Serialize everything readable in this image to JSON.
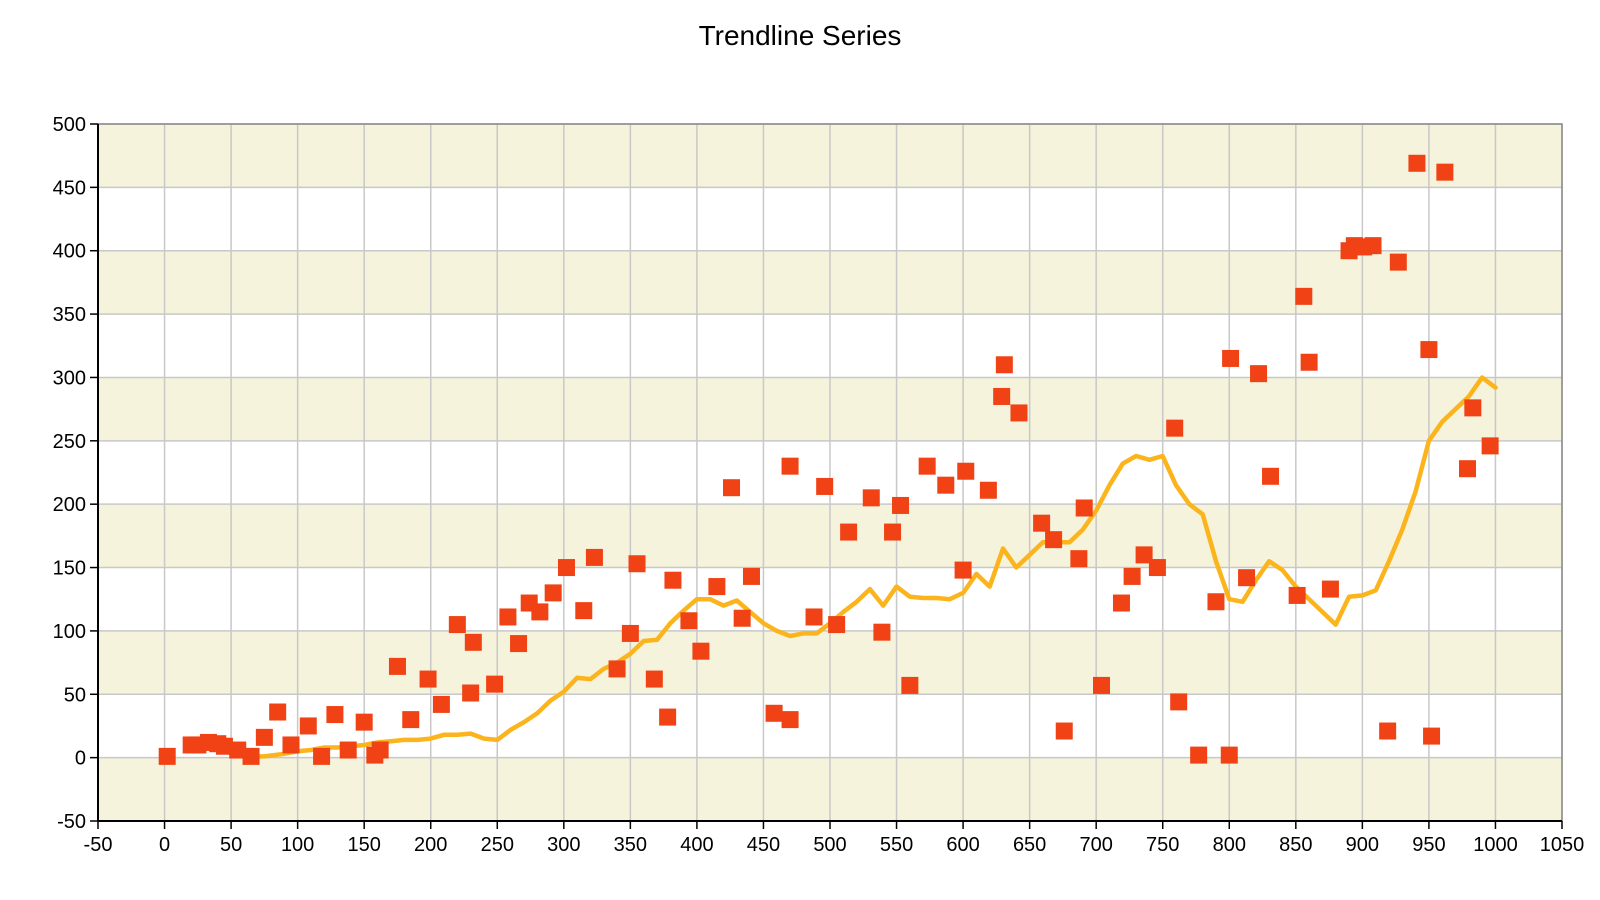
{
  "chart_data": {
    "type": "scatter",
    "title": "Trendline Series",
    "xlabel": "",
    "ylabel": "",
    "xlim": [
      -50,
      1050
    ],
    "ylim": [
      -50,
      500
    ],
    "x_ticks": [
      -50,
      0,
      50,
      100,
      150,
      200,
      250,
      300,
      350,
      400,
      450,
      500,
      550,
      600,
      650,
      700,
      750,
      800,
      850,
      900,
      950,
      1000,
      1050
    ],
    "y_ticks": [
      -50,
      0,
      50,
      100,
      150,
      200,
      250,
      300,
      350,
      400,
      450,
      500
    ],
    "grid": true,
    "band_colors": [
      "#f5f3dc",
      "#ffffff"
    ],
    "colors": {
      "scatter": "#f04214",
      "trend": "#fbb41c",
      "grid": "#c8c8c8",
      "axis": "#000000"
    },
    "series": [
      {
        "kind": "scatter",
        "marker": "square",
        "points": [
          [
            2,
            1
          ],
          [
            20,
            10
          ],
          [
            25,
            10
          ],
          [
            33,
            12
          ],
          [
            40,
            11
          ],
          [
            45,
            9
          ],
          [
            55,
            6
          ],
          [
            65,
            1
          ],
          [
            75,
            16
          ],
          [
            85,
            36
          ],
          [
            95,
            10
          ],
          [
            108,
            25
          ],
          [
            118,
            1
          ],
          [
            128,
            34
          ],
          [
            138,
            6
          ],
          [
            150,
            28
          ],
          [
            158,
            2
          ],
          [
            162,
            6
          ],
          [
            175,
            72
          ],
          [
            185,
            30
          ],
          [
            198,
            62
          ],
          [
            208,
            42
          ],
          [
            220,
            105
          ],
          [
            230,
            51
          ],
          [
            232,
            91
          ],
          [
            248,
            58
          ],
          [
            258,
            111
          ],
          [
            266,
            90
          ],
          [
            274,
            122
          ],
          [
            282,
            115
          ],
          [
            292,
            130
          ],
          [
            302,
            150
          ],
          [
            315,
            116
          ],
          [
            323,
            158
          ],
          [
            340,
            70
          ],
          [
            350,
            98
          ],
          [
            355,
            153
          ],
          [
            368,
            62
          ],
          [
            378,
            32
          ],
          [
            382,
            140
          ],
          [
            394,
            108
          ],
          [
            403,
            84
          ],
          [
            415,
            135
          ],
          [
            426,
            213
          ],
          [
            434,
            110
          ],
          [
            441,
            143
          ],
          [
            458,
            35
          ],
          [
            470,
            30
          ],
          [
            470,
            230
          ],
          [
            488,
            111
          ],
          [
            496,
            214
          ],
          [
            505,
            105
          ],
          [
            514,
            178
          ],
          [
            531,
            205
          ],
          [
            539,
            99
          ],
          [
            547,
            178
          ],
          [
            553,
            199
          ],
          [
            560,
            57
          ],
          [
            573,
            230
          ],
          [
            587,
            215
          ],
          [
            600,
            148
          ],
          [
            602,
            226
          ],
          [
            619,
            211
          ],
          [
            629,
            285
          ],
          [
            631,
            310
          ],
          [
            642,
            272
          ],
          [
            659,
            185
          ],
          [
            668,
            172
          ],
          [
            676,
            21
          ],
          [
            687,
            157
          ],
          [
            691,
            197
          ],
          [
            704,
            57
          ],
          [
            719,
            122
          ],
          [
            727,
            143
          ],
          [
            736,
            160
          ],
          [
            746,
            150
          ],
          [
            759,
            260
          ],
          [
            762,
            44
          ],
          [
            777,
            2
          ],
          [
            790,
            123
          ],
          [
            800,
            2
          ],
          [
            801,
            315
          ],
          [
            813,
            142
          ],
          [
            822,
            303
          ],
          [
            831,
            222
          ],
          [
            851,
            128
          ],
          [
            856,
            364
          ],
          [
            860,
            312
          ],
          [
            876,
            133
          ],
          [
            890,
            400
          ],
          [
            894,
            404
          ],
          [
            901,
            403
          ],
          [
            908,
            404
          ],
          [
            919,
            21
          ],
          [
            927,
            391
          ],
          [
            941,
            469
          ],
          [
            950,
            322
          ],
          [
            952,
            17
          ],
          [
            962,
            462
          ],
          [
            979,
            228
          ],
          [
            983,
            276
          ],
          [
            996,
            246
          ]
        ]
      },
      {
        "kind": "line",
        "points": [
          [
            45,
            5
          ],
          [
            55,
            2
          ],
          [
            65,
            1
          ],
          [
            75,
            1
          ],
          [
            90,
            3
          ],
          [
            100,
            5
          ],
          [
            110,
            6
          ],
          [
            120,
            8
          ],
          [
            130,
            8
          ],
          [
            140,
            9
          ],
          [
            150,
            10
          ],
          [
            160,
            12
          ],
          [
            170,
            13
          ],
          [
            180,
            14
          ],
          [
            190,
            14
          ],
          [
            200,
            15
          ],
          [
            210,
            18
          ],
          [
            220,
            18
          ],
          [
            230,
            19
          ],
          [
            240,
            15
          ],
          [
            250,
            14
          ],
          [
            260,
            22
          ],
          [
            270,
            28
          ],
          [
            280,
            35
          ],
          [
            290,
            45
          ],
          [
            300,
            52
          ],
          [
            310,
            63
          ],
          [
            320,
            62
          ],
          [
            330,
            70
          ],
          [
            340,
            75
          ],
          [
            350,
            82
          ],
          [
            360,
            92
          ],
          [
            370,
            93
          ],
          [
            380,
            106
          ],
          [
            390,
            116
          ],
          [
            400,
            125
          ],
          [
            410,
            125
          ],
          [
            420,
            120
          ],
          [
            430,
            124
          ],
          [
            440,
            115
          ],
          [
            450,
            106
          ],
          [
            460,
            100
          ],
          [
            470,
            96
          ],
          [
            480,
            98
          ],
          [
            490,
            98
          ],
          [
            500,
            106
          ],
          [
            510,
            115
          ],
          [
            520,
            123
          ],
          [
            530,
            133
          ],
          [
            540,
            120
          ],
          [
            550,
            135
          ],
          [
            560,
            127
          ],
          [
            570,
            126
          ],
          [
            580,
            126
          ],
          [
            590,
            125
          ],
          [
            600,
            130
          ],
          [
            610,
            145
          ],
          [
            620,
            135
          ],
          [
            630,
            165
          ],
          [
            640,
            150
          ],
          [
            650,
            160
          ],
          [
            660,
            170
          ],
          [
            670,
            170
          ],
          [
            680,
            170
          ],
          [
            690,
            180
          ],
          [
            700,
            195
          ],
          [
            710,
            215
          ],
          [
            720,
            232
          ],
          [
            730,
            238
          ],
          [
            740,
            235
          ],
          [
            750,
            238
          ],
          [
            760,
            215
          ],
          [
            770,
            200
          ],
          [
            780,
            192
          ],
          [
            790,
            155
          ],
          [
            800,
            125
          ],
          [
            810,
            123
          ],
          [
            820,
            140
          ],
          [
            830,
            155
          ],
          [
            840,
            148
          ],
          [
            850,
            135
          ],
          [
            860,
            125
          ],
          [
            870,
            115
          ],
          [
            880,
            105
          ],
          [
            890,
            127
          ],
          [
            900,
            128
          ],
          [
            910,
            132
          ],
          [
            920,
            155
          ],
          [
            930,
            180
          ],
          [
            940,
            210
          ],
          [
            950,
            250
          ],
          [
            960,
            265
          ],
          [
            970,
            275
          ],
          [
            980,
            285
          ],
          [
            990,
            300
          ],
          [
            1000,
            292
          ]
        ]
      }
    ]
  }
}
